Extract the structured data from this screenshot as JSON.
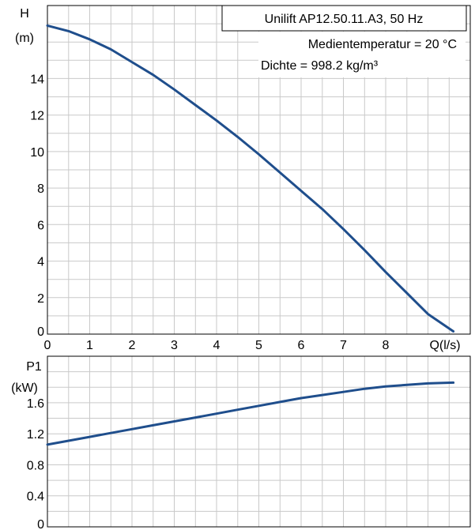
{
  "chart_data": [
    {
      "type": "line",
      "title": "Unilift AP12.50.11.A3, 50 Hz",
      "annotations": [
        "Medientemperatur = 20 °C",
        "Dichte = 998.2 kg/m³"
      ],
      "ylabel": "H",
      "yunit": "(m)",
      "xlabel": "Q(l/s)",
      "xlim": [
        0,
        10
      ],
      "ylim": [
        0,
        18
      ],
      "xticks": [
        "0",
        "1",
        "2",
        "3",
        "4",
        "5",
        "6",
        "7",
        "8"
      ],
      "yticks": [
        "0",
        "2",
        "4",
        "6",
        "8",
        "10",
        "12",
        "14"
      ],
      "grid": true,
      "series": [
        {
          "color": "#1f4e8c",
          "x": [
            0,
            0.5,
            1,
            1.5,
            2,
            2.5,
            3,
            3.5,
            4,
            4.5,
            5,
            5.5,
            6,
            6.5,
            7,
            7.5,
            8,
            8.5,
            9,
            9.6
          ],
          "y": [
            16.9,
            16.6,
            16.15,
            15.6,
            14.9,
            14.2,
            13.4,
            12.55,
            11.7,
            10.8,
            9.85,
            8.85,
            7.85,
            6.85,
            5.75,
            4.6,
            3.4,
            2.25,
            1.1,
            0.15
          ]
        }
      ]
    },
    {
      "type": "line",
      "ylabel": "P1",
      "yunit": "(kW)",
      "xlim": [
        0,
        10
      ],
      "ylim": [
        0,
        2.2
      ],
      "yticks": [
        "0",
        "0.4",
        "0.8",
        "1.2",
        "1.6"
      ],
      "grid": true,
      "series": [
        {
          "color": "#1f4e8c",
          "x": [
            0,
            0.5,
            1,
            1.5,
            2,
            2.5,
            3,
            3.5,
            4,
            4.5,
            5,
            5.5,
            6,
            6.5,
            7,
            7.5,
            8,
            8.5,
            9,
            9.6
          ],
          "y": [
            1.06,
            1.11,
            1.16,
            1.21,
            1.26,
            1.31,
            1.36,
            1.41,
            1.46,
            1.51,
            1.56,
            1.61,
            1.66,
            1.7,
            1.74,
            1.78,
            1.81,
            1.83,
            1.85,
            1.86
          ]
        }
      ]
    }
  ]
}
